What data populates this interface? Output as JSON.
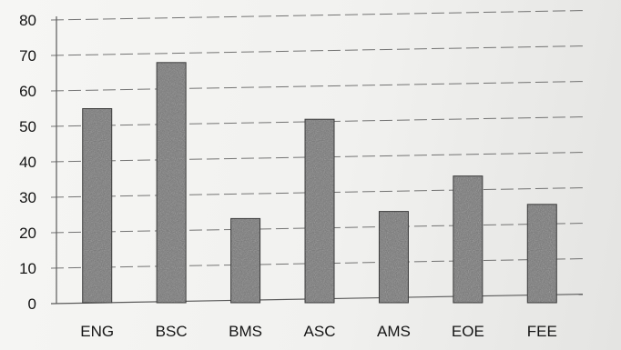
{
  "chart_data": {
    "type": "bar",
    "categories": [
      "ENG",
      "BSC",
      "BMS",
      "ASC",
      "AMS",
      "EOE",
      "FEE"
    ],
    "values": [
      55,
      68,
      24,
      52,
      26,
      36,
      28
    ],
    "ylim": [
      0,
      80
    ],
    "yticks": [
      0,
      10,
      20,
      30,
      40,
      50,
      60,
      70,
      80
    ],
    "grid": true,
    "legend": "none",
    "bar_color": "#6e6e6e"
  }
}
